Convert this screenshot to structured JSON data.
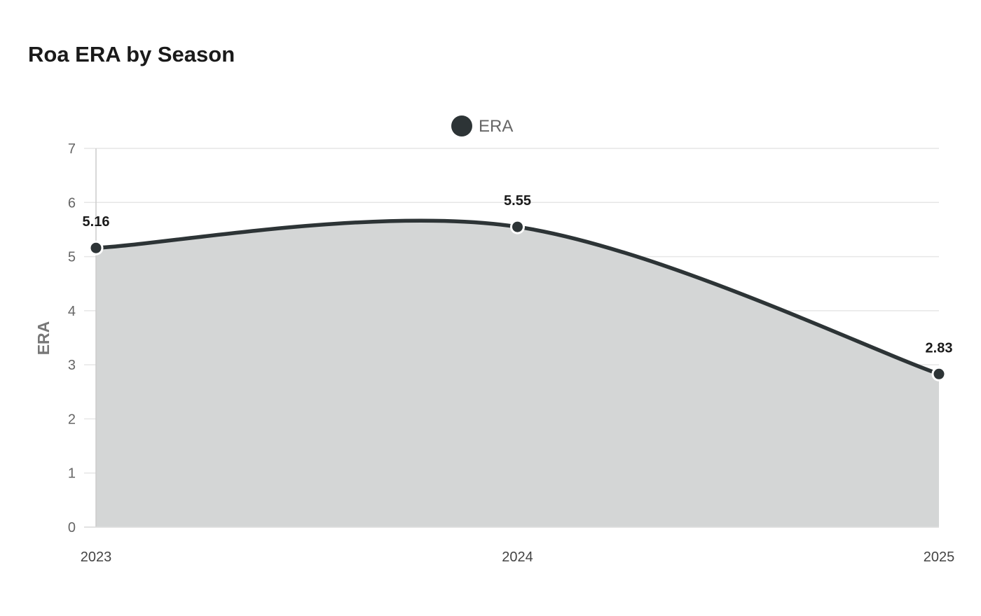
{
  "title": "Roa ERA by Season",
  "legend": {
    "label": "ERA",
    "color": "#2d3436"
  },
  "axis": {
    "ylabel": "ERA",
    "xlabel": ""
  },
  "chart_data": {
    "type": "area",
    "title": "Roa ERA by Season",
    "categories": [
      "2023",
      "2024",
      "2025"
    ],
    "series": [
      {
        "name": "ERA",
        "values": [
          5.16,
          5.55,
          2.83
        ],
        "color": "#2d3436",
        "fill": "#d4d6d6"
      }
    ],
    "xlabel": "",
    "ylabel": "ERA",
    "ylim": [
      0,
      7
    ],
    "yticks": [
      0,
      1,
      2,
      3,
      4,
      5,
      6,
      7
    ],
    "grid": true,
    "legend_position": "top",
    "data_labels": [
      "5.16",
      "5.55",
      "2.83"
    ],
    "smooth": true
  }
}
